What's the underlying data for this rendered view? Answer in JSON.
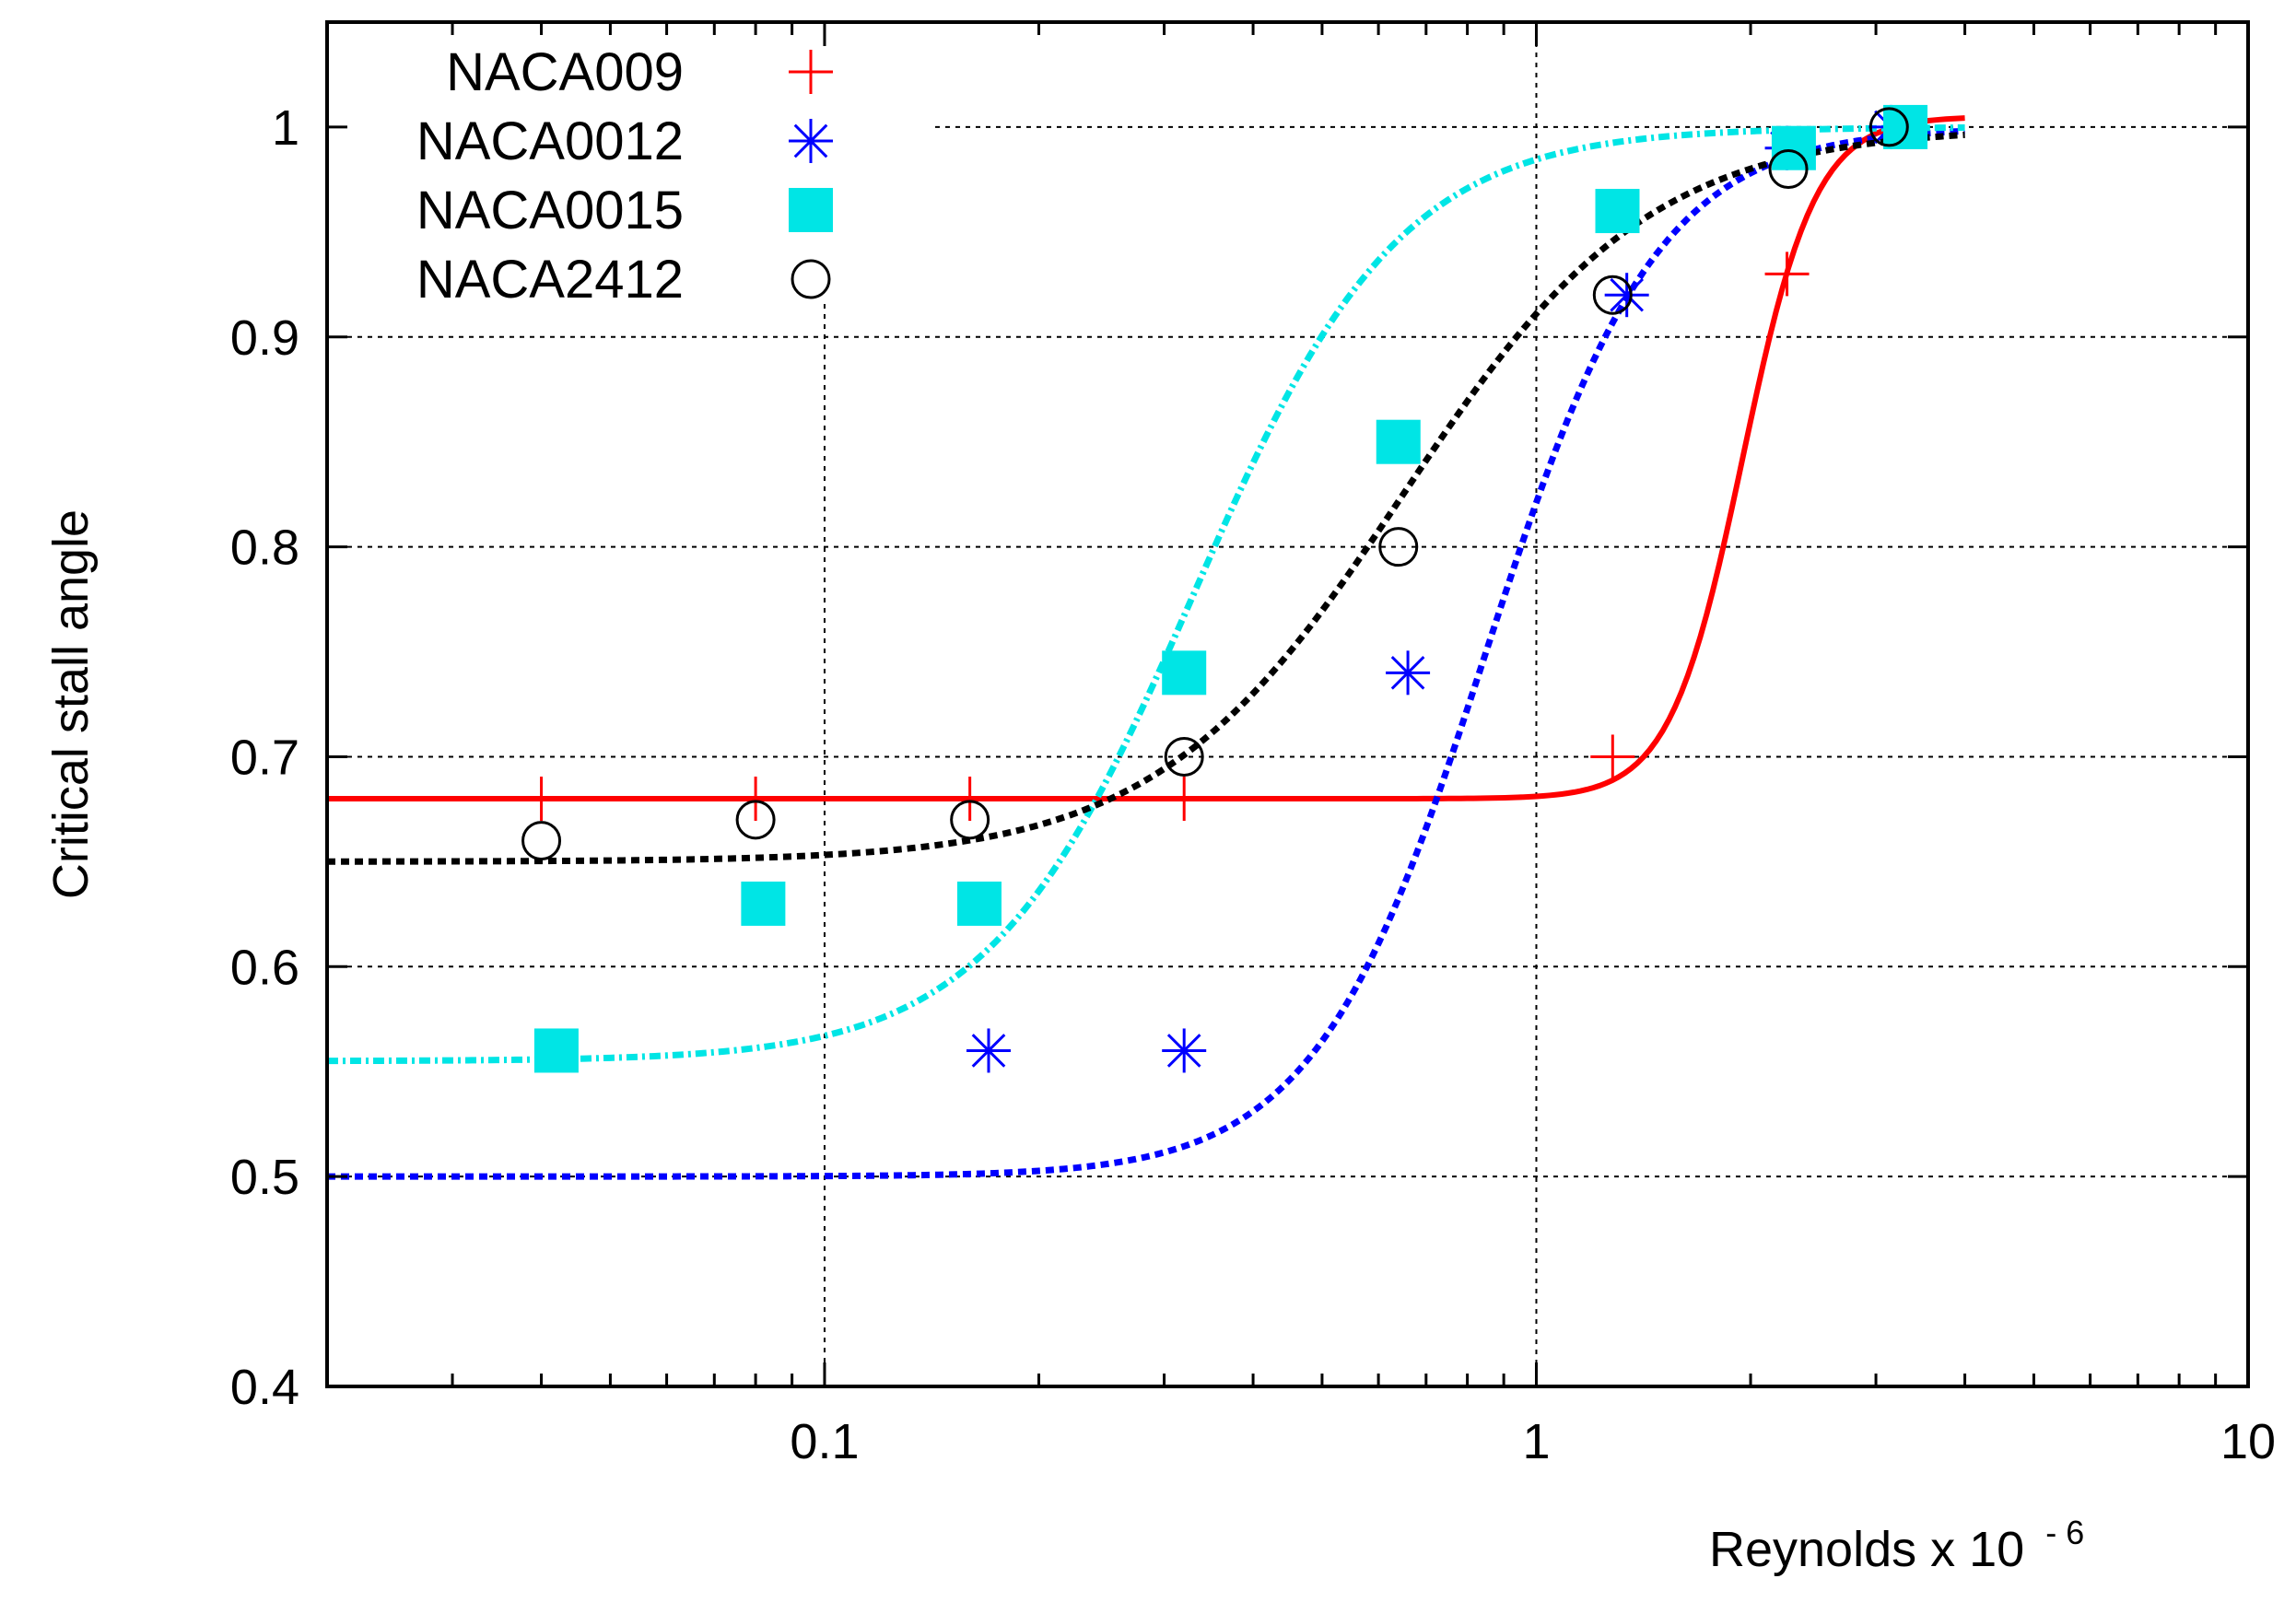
{
  "chart_data": {
    "type": "scatter",
    "title": "",
    "xlabel": "Reynolds x 10",
    "xlabel_exponent": "- 6",
    "ylabel": "Critical stall angle",
    "xscale": "log",
    "xlim": [
      0.02,
      10
    ],
    "ylim": [
      0.4,
      1.05
    ],
    "grid": true,
    "legend_position": "top-left",
    "x_ticks": [
      {
        "value": 0.1,
        "label": "0.1"
      },
      {
        "value": 1,
        "label": "1"
      },
      {
        "value": 10,
        "label": "10"
      }
    ],
    "y_ticks": [
      {
        "value": 0.4,
        "label": "0.4"
      },
      {
        "value": 0.5,
        "label": "0.5"
      },
      {
        "value": 0.6,
        "label": "0.6"
      },
      {
        "value": 0.7,
        "label": "0.7"
      },
      {
        "value": 0.8,
        "label": "0.8"
      },
      {
        "value": 0.9,
        "label": "0.9"
      },
      {
        "value": 1.0,
        "label": "1"
      }
    ],
    "series": [
      {
        "name": "NACA009",
        "color": "#ff0000",
        "marker": "plus",
        "x": [
          0.04,
          0.08,
          0.16,
          0.32,
          1.28,
          2.25
        ],
        "y": [
          0.68,
          0.68,
          0.68,
          0.68,
          0.7,
          0.93
        ],
        "fit": {
          "style": "solid",
          "x_range": [
            0.02,
            4.0
          ],
          "low": 0.68,
          "high": 1.005,
          "x0": 1.95,
          "k": 8.5
        }
      },
      {
        "name": "NACA0012",
        "color": "#0000ff",
        "marker": "asterisk",
        "x": [
          0.17,
          0.32,
          0.66,
          1.34,
          2.25,
          3.15
        ],
        "y": [
          0.56,
          0.56,
          0.74,
          0.92,
          0.99,
          1.0
        ],
        "fit": {
          "style": "dotted",
          "x_range": [
            0.02,
            4.0
          ],
          "low": 0.5,
          "high": 1.0,
          "x0": 0.85,
          "k": 3.6
        }
      },
      {
        "name": "NACA0015",
        "color": "#00e5e5",
        "marker": "square",
        "x": [
          0.042,
          0.082,
          0.165,
          0.32,
          0.64,
          1.3,
          2.3,
          3.3
        ],
        "y": [
          0.56,
          0.63,
          0.63,
          0.74,
          0.85,
          0.96,
          0.99,
          1.0
        ],
        "fit": {
          "style": "dashdot",
          "x_range": [
            0.02,
            4.0
          ],
          "low": 0.555,
          "high": 1.0,
          "x0": 0.33,
          "k": 3.0
        }
      },
      {
        "name": "NACA2412",
        "color": "#000000",
        "marker": "circle",
        "x": [
          0.04,
          0.08,
          0.16,
          0.32,
          0.64,
          1.28,
          2.26,
          3.13
        ],
        "y": [
          0.66,
          0.67,
          0.67,
          0.7,
          0.8,
          0.92,
          0.98,
          1.0
        ],
        "fit": {
          "style": "dotted",
          "x_range": [
            0.02,
            4.0
          ],
          "low": 0.65,
          "high": 1.0,
          "x0": 0.65,
          "k": 2.5
        }
      }
    ]
  }
}
